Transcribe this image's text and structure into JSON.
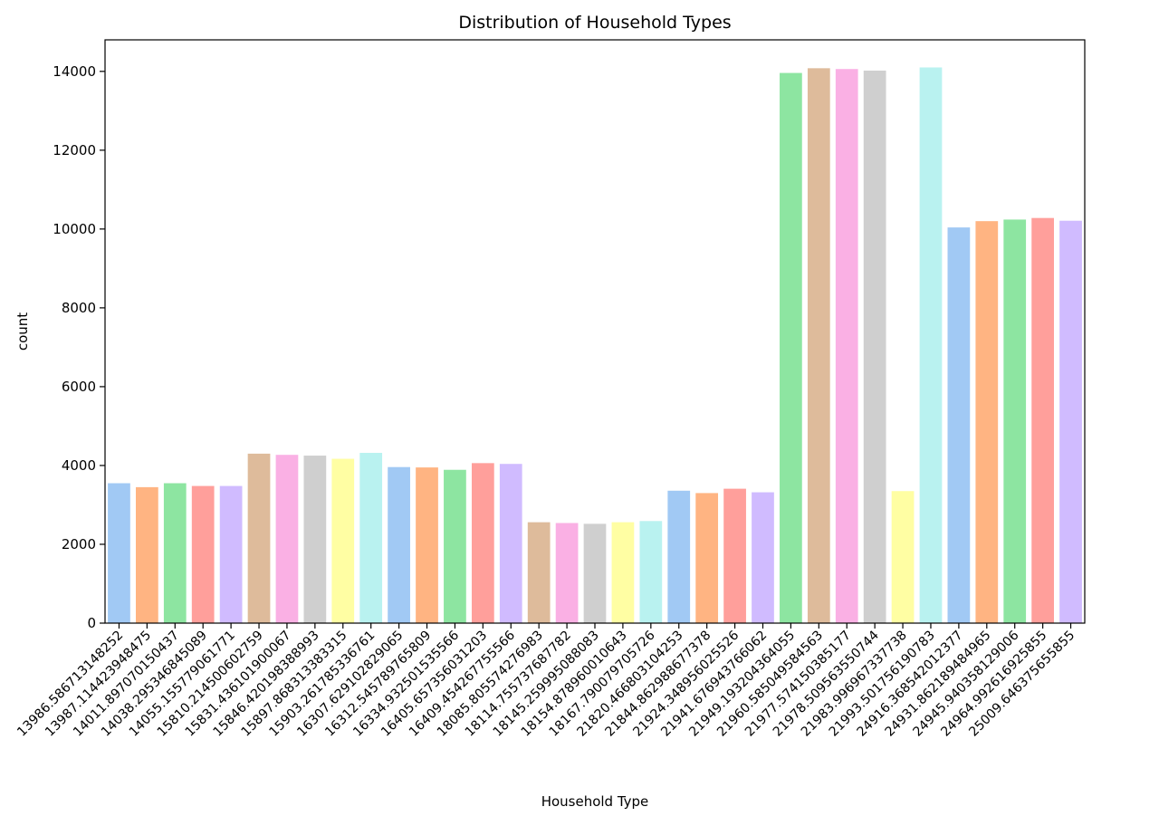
{
  "chart_data": {
    "type": "bar",
    "title": "Distribution of Household Types",
    "xlabel": "Household Type",
    "ylabel": "count",
    "ylim": [
      0,
      14800
    ],
    "yticks": [
      0,
      2000,
      4000,
      6000,
      8000,
      10000,
      12000,
      14000
    ],
    "grid": false,
    "legend": "none",
    "categories": [
      "13986.586713148252",
      "13987.114423948475",
      "14011.897070150437",
      "14038.295346845089",
      "14055.155779061771",
      "15810.214500602759",
      "15831.436101900067",
      "15846.420198388993",
      "15897.868313383315",
      "15903.261785336761",
      "16307.629102829065",
      "16312.545789765809",
      "16334.932501535566",
      "16405.657356031203",
      "16409.454267755566",
      "18085.805574276983",
      "18114.755737687782",
      "18145.259995088083",
      "18154.878960010643",
      "18167.790079705726",
      "21820.466803104253",
      "21844.862988677378",
      "21924.348956025526",
      "21941.676943766062",
      "21949.193204364055",
      "21960.585049584563",
      "21977.574150385177",
      "21978.509563550744",
      "21983.996967337738",
      "21993.501756190783",
      "24916.368542012377",
      "24931.862189484965",
      "24945.940358129006",
      "24964.992616925855",
      "25009.646375655855"
    ],
    "values": [
      3550,
      3450,
      3550,
      3480,
      3480,
      4300,
      4270,
      4250,
      4170,
      4320,
      3960,
      3950,
      3890,
      4060,
      4040,
      2560,
      2540,
      2520,
      2560,
      2590,
      3360,
      3300,
      3410,
      3320,
      13960,
      14080,
      14060,
      14020,
      3350,
      14100,
      10040,
      10200,
      10240,
      10280,
      10210
    ],
    "colors": [
      "#a1c9f4",
      "#ffb482",
      "#8de5a1",
      "#ff9f9b",
      "#d0bbff",
      "#debb9b",
      "#fab0e4",
      "#cfcfcf",
      "#fffea3",
      "#b9f2f0"
    ],
    "bar_color_indices": [
      0,
      1,
      2,
      3,
      4,
      5,
      6,
      7,
      8,
      9,
      0,
      1,
      2,
      3,
      4,
      5,
      6,
      7,
      8,
      9,
      0,
      1,
      3,
      4,
      2,
      5,
      6,
      7,
      8,
      9,
      0,
      1,
      2,
      3,
      4
    ]
  }
}
